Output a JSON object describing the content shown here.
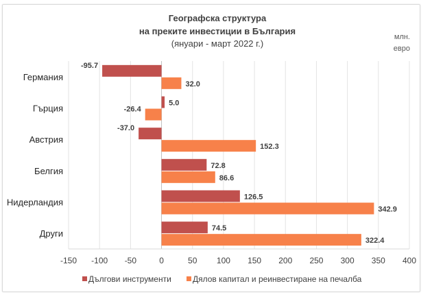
{
  "chart_data": {
    "type": "bar",
    "orientation": "horizontal",
    "title": [
      "Географска структура",
      "на преките инвестиции в България"
    ],
    "subtitle": "(януари - март 2022 г.)",
    "unit": [
      "млн.",
      "евро"
    ],
    "categories": [
      "Германия",
      "Гърция",
      "Австрия",
      "Белгия",
      "Нидерландия",
      "Други"
    ],
    "series": [
      {
        "name": "Дългови инструменти",
        "color": "#C0504D",
        "values": [
          -95.7,
          5.0,
          -37.0,
          72.8,
          126.5,
          74.5
        ]
      },
      {
        "name": "Дялов капитал и реинвестиране на печалба",
        "color": "#F7814A",
        "values": [
          32.0,
          -26.4,
          152.3,
          86.6,
          342.9,
          322.4
        ]
      }
    ],
    "xlim": [
      -150,
      400
    ],
    "xticks": [
      -150,
      -100,
      -50,
      0,
      50,
      100,
      150,
      200,
      250,
      300,
      350,
      400
    ],
    "grid": true,
    "legend": "bottom"
  }
}
